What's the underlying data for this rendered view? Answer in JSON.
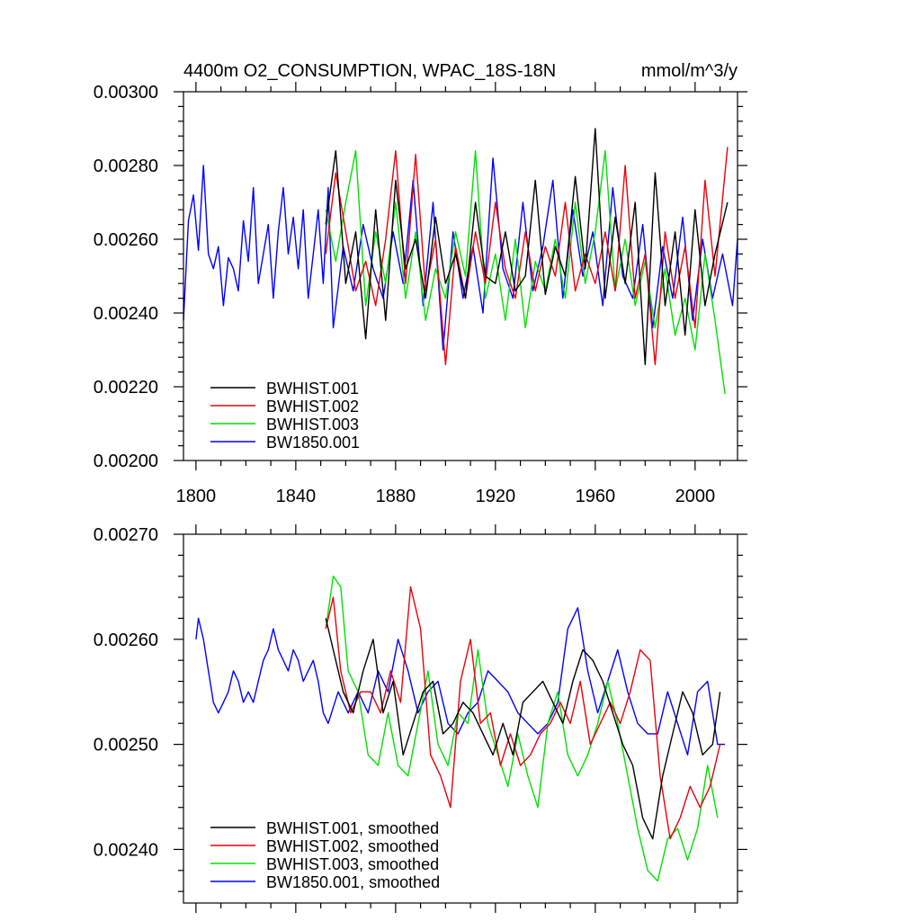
{
  "colors": {
    "BWHIST.001": "#000000",
    "BWHIST.002": "#e8000b",
    "BWHIST.003": "#00e000",
    "BW1850.001": "#0000ff"
  },
  "chart_data": [
    {
      "type": "line",
      "title": "4400m O2_CONSUMPTION, WPAC_18S-18N",
      "units": "mmol/m^3/y",
      "xlim": [
        1795,
        2017
      ],
      "ylim": [
        0.002,
        0.003
      ],
      "xticks": [
        1800,
        1840,
        1880,
        1920,
        1960,
        2000
      ],
      "xtick_labels": [
        "1800",
        "1840",
        "1880",
        "1920",
        "1960",
        "2000"
      ],
      "yticks": [
        0.002,
        0.0022,
        0.0024,
        0.0026,
        0.0028,
        0.003
      ],
      "ytick_labels": [
        "0.00200",
        "0.00220",
        "0.00240",
        "0.00260",
        "0.00280",
        "0.00300"
      ],
      "series": [
        {
          "name": "BWHIST.001",
          "label": "BWHIST.001",
          "x": [
            1852,
            1856,
            1860,
            1864,
            1868,
            1872,
            1876,
            1880,
            1884,
            1888,
            1892,
            1896,
            1900,
            1904,
            1908,
            1912,
            1916,
            1920,
            1924,
            1928,
            1932,
            1936,
            1940,
            1944,
            1948,
            1952,
            1956,
            1960,
            1964,
            1968,
            1972,
            1976,
            1980,
            1984,
            1988,
            1992,
            1996,
            2000,
            2004,
            2008,
            2013
          ],
          "values": [
            0.00264,
            0.00284,
            0.00248,
            0.00262,
            0.00233,
            0.00268,
            0.00238,
            0.00276,
            0.00252,
            0.0026,
            0.00244,
            0.00266,
            0.00248,
            0.00256,
            0.00244,
            0.0027,
            0.0025,
            0.00248,
            0.00262,
            0.00246,
            0.0025,
            0.00276,
            0.00245,
            0.00258,
            0.0025,
            0.00277,
            0.00252,
            0.0029,
            0.00244,
            0.00266,
            0.00248,
            0.0027,
            0.00226,
            0.00278,
            0.00242,
            0.00262,
            0.00234,
            0.00268,
            0.00242,
            0.00256,
            0.0027
          ]
        },
        {
          "name": "BWHIST.002",
          "label": "BWHIST.002",
          "x": [
            1852,
            1856,
            1860,
            1864,
            1868,
            1872,
            1876,
            1880,
            1884,
            1888,
            1892,
            1896,
            1900,
            1904,
            1908,
            1912,
            1916,
            1920,
            1924,
            1928,
            1932,
            1936,
            1940,
            1944,
            1948,
            1952,
            1956,
            1960,
            1964,
            1968,
            1972,
            1976,
            1980,
            1984,
            1988,
            1992,
            1996,
            2000,
            2004,
            2008,
            2013
          ],
          "values": [
            0.00256,
            0.00278,
            0.00262,
            0.00246,
            0.00254,
            0.00242,
            0.0026,
            0.00284,
            0.00248,
            0.00283,
            0.00246,
            0.0026,
            0.00226,
            0.00258,
            0.00244,
            0.00262,
            0.00248,
            0.0027,
            0.00252,
            0.00244,
            0.00262,
            0.00246,
            0.00258,
            0.0025,
            0.0027,
            0.00246,
            0.00256,
            0.00248,
            0.00262,
            0.00246,
            0.0028,
            0.00244,
            0.00256,
            0.00226,
            0.00262,
            0.00244,
            0.00258,
            0.00236,
            0.00276,
            0.0025,
            0.00285
          ]
        },
        {
          "name": "BWHIST.003",
          "label": "BWHIST.003",
          "x": [
            1852,
            1856,
            1860,
            1864,
            1868,
            1872,
            1876,
            1880,
            1884,
            1888,
            1892,
            1896,
            1900,
            1904,
            1908,
            1912,
            1916,
            1920,
            1924,
            1928,
            1932,
            1936,
            1940,
            1944,
            1948,
            1952,
            1956,
            1960,
            1964,
            1968,
            1972,
            1976,
            1980,
            1984,
            1988,
            1992,
            1996,
            2000,
            2004,
            2008,
            2012
          ],
          "values": [
            0.00268,
            0.00254,
            0.0027,
            0.00284,
            0.00242,
            0.00262,
            0.00248,
            0.0027,
            0.00244,
            0.00262,
            0.00238,
            0.00252,
            0.00244,
            0.00262,
            0.0025,
            0.00284,
            0.00244,
            0.00256,
            0.00238,
            0.0026,
            0.00236,
            0.00254,
            0.00246,
            0.0026,
            0.00244,
            0.0027,
            0.00248,
            0.00262,
            0.00284,
            0.00246,
            0.0026,
            0.00242,
            0.00254,
            0.00236,
            0.00252,
            0.00234,
            0.00244,
            0.0023,
            0.00256,
            0.00238,
            0.00218
          ]
        },
        {
          "name": "BW1850.001",
          "label": "BW1850.001",
          "x": [
            1795,
            1797,
            1799,
            1801,
            1803,
            1805,
            1807,
            1809,
            1811,
            1813,
            1815,
            1817,
            1819,
            1821,
            1823,
            1825,
            1827,
            1829,
            1831,
            1833,
            1835,
            1837,
            1839,
            1841,
            1843,
            1845,
            1847,
            1849,
            1851,
            1853,
            1855,
            1859,
            1863,
            1867,
            1871,
            1875,
            1879,
            1883,
            1887,
            1891,
            1895,
            1899,
            1903,
            1907,
            1911,
            1915,
            1919,
            1923,
            1927,
            1931,
            1935,
            1939,
            1943,
            1947,
            1951,
            1955,
            1959,
            1963,
            1967,
            1971,
            1975,
            1979,
            1983,
            1987,
            1991,
            1995,
            1999,
            2003,
            2007,
            2011,
            2015,
            2017
          ],
          "values": [
            0.00238,
            0.00265,
            0.00272,
            0.00257,
            0.0028,
            0.00256,
            0.00252,
            0.00258,
            0.00242,
            0.00255,
            0.00252,
            0.00246,
            0.00265,
            0.00254,
            0.00274,
            0.00248,
            0.00256,
            0.00264,
            0.00244,
            0.00262,
            0.00274,
            0.00256,
            0.00266,
            0.00252,
            0.00268,
            0.00244,
            0.00256,
            0.00268,
            0.00248,
            0.00274,
            0.00236,
            0.00258,
            0.00246,
            0.00264,
            0.00252,
            0.00244,
            0.00262,
            0.00248,
            0.00276,
            0.00242,
            0.0027,
            0.0023,
            0.00262,
            0.00244,
            0.00258,
            0.0024,
            0.00282,
            0.00252,
            0.00244,
            0.0027,
            0.00246,
            0.00258,
            0.00276,
            0.00244,
            0.00268,
            0.0025,
            0.00262,
            0.00242,
            0.00274,
            0.0025,
            0.00244,
            0.00264,
            0.00236,
            0.00258,
            0.00244,
            0.00266,
            0.00238,
            0.0026,
            0.00244,
            0.00256,
            0.00242,
            0.0026
          ]
        }
      ]
    },
    {
      "type": "line",
      "title": "",
      "xlim": [
        1795,
        2017
      ],
      "ylim": [
        0.002349,
        0.0027
      ],
      "xticks": [
        1800,
        1840,
        1880,
        1920,
        1960,
        2000
      ],
      "yticks": [
        0.0024,
        0.0025,
        0.0026,
        0.0027
      ],
      "ytick_labels": [
        "0.00240",
        "0.00250",
        "0.00260",
        "0.00270"
      ],
      "series": [
        {
          "name": "BWHIST.001",
          "label": "BWHIST.001, smoothed",
          "x": [
            1852,
            1855,
            1859,
            1863,
            1867,
            1871,
            1875,
            1879,
            1883,
            1887,
            1891,
            1895,
            1899,
            1903,
            1907,
            1911,
            1915,
            1919,
            1923,
            1927,
            1931,
            1935,
            1939,
            1943,
            1947,
            1951,
            1955,
            1959,
            1963,
            1967,
            1971,
            1975,
            1979,
            1983,
            1987,
            1991,
            1995,
            1999,
            2003,
            2007,
            2010
          ],
          "values": [
            0.00262,
            0.00259,
            0.00255,
            0.00253,
            0.00257,
            0.0026,
            0.00253,
            0.00256,
            0.00249,
            0.00252,
            0.00255,
            0.00256,
            0.00251,
            0.00252,
            0.00254,
            0.00253,
            0.00251,
            0.00249,
            0.00252,
            0.00249,
            0.00254,
            0.00255,
            0.00256,
            0.00254,
            0.00252,
            0.00256,
            0.00259,
            0.00258,
            0.00256,
            0.00253,
            0.0025,
            0.00248,
            0.00243,
            0.00241,
            0.00247,
            0.00251,
            0.00255,
            0.00253,
            0.00249,
            0.0025,
            0.00255
          ]
        },
        {
          "name": "BWHIST.002",
          "label": "BWHIST.002, smoothed",
          "x": [
            1852,
            1855,
            1858,
            1862,
            1866,
            1870,
            1874,
            1878,
            1882,
            1886,
            1890,
            1894,
            1898,
            1902,
            1906,
            1910,
            1914,
            1918,
            1922,
            1926,
            1930,
            1934,
            1938,
            1942,
            1946,
            1950,
            1954,
            1958,
            1962,
            1966,
            1970,
            1974,
            1978,
            1982,
            1986,
            1990,
            1994,
            1998,
            2002,
            2006,
            2010
          ],
          "values": [
            0.00261,
            0.00264,
            0.00257,
            0.00253,
            0.00255,
            0.00255,
            0.00253,
            0.00257,
            0.00254,
            0.00265,
            0.00261,
            0.00249,
            0.00247,
            0.00244,
            0.00256,
            0.0026,
            0.00252,
            0.00253,
            0.00248,
            0.00251,
            0.00248,
            0.00249,
            0.00251,
            0.00252,
            0.00254,
            0.00252,
            0.00256,
            0.0025,
            0.00252,
            0.00254,
            0.00252,
            0.00255,
            0.00259,
            0.00258,
            0.00247,
            0.00241,
            0.00243,
            0.00246,
            0.00244,
            0.00246,
            0.0025
          ]
        },
        {
          "name": "BWHIST.003",
          "label": "BWHIST.003, smoothed",
          "x": [
            1852,
            1855,
            1858,
            1861,
            1865,
            1869,
            1873,
            1877,
            1881,
            1885,
            1889,
            1893,
            1897,
            1901,
            1905,
            1909,
            1913,
            1917,
            1921,
            1925,
            1929,
            1933,
            1937,
            1941,
            1945,
            1949,
            1953,
            1957,
            1961,
            1965,
            1969,
            1973,
            1977,
            1981,
            1985,
            1989,
            1993,
            1997,
            2001,
            2005,
            2009
          ],
          "values": [
            0.00261,
            0.00266,
            0.00265,
            0.00257,
            0.00255,
            0.00249,
            0.00248,
            0.00253,
            0.00248,
            0.00247,
            0.00252,
            0.00257,
            0.0025,
            0.00248,
            0.00253,
            0.00252,
            0.00259,
            0.00252,
            0.00249,
            0.00246,
            0.00251,
            0.00247,
            0.00244,
            0.00252,
            0.00255,
            0.00249,
            0.00247,
            0.00249,
            0.00252,
            0.00256,
            0.00252,
            0.00247,
            0.00242,
            0.00238,
            0.00237,
            0.00241,
            0.00242,
            0.00239,
            0.00242,
            0.00248,
            0.00243
          ]
        },
        {
          "name": "BW1850.001",
          "label": "BW1850.001, smoothed",
          "x": [
            1800,
            1801,
            1803,
            1805,
            1807,
            1809,
            1811,
            1813,
            1815,
            1817,
            1819,
            1821,
            1823,
            1825,
            1827,
            1829,
            1831,
            1833,
            1835,
            1837,
            1839,
            1841,
            1843,
            1845,
            1847,
            1849,
            1851,
            1853,
            1857,
            1861,
            1865,
            1869,
            1873,
            1877,
            1881,
            1885,
            1889,
            1893,
            1897,
            1901,
            1905,
            1909,
            1913,
            1917,
            1921,
            1925,
            1929,
            1933,
            1937,
            1941,
            1945,
            1949,
            1953,
            1957,
            1961,
            1965,
            1969,
            1973,
            1977,
            1981,
            1985,
            1989,
            1993,
            1997,
            2001,
            2005,
            2009,
            2012
          ],
          "values": [
            0.0026,
            0.00262,
            0.0026,
            0.00257,
            0.00254,
            0.00253,
            0.00254,
            0.00255,
            0.00257,
            0.00256,
            0.00254,
            0.00255,
            0.00254,
            0.00256,
            0.00258,
            0.00259,
            0.00261,
            0.00259,
            0.00258,
            0.00257,
            0.00259,
            0.00258,
            0.00256,
            0.00257,
            0.00258,
            0.00256,
            0.00253,
            0.00252,
            0.00255,
            0.00253,
            0.00255,
            0.00253,
            0.00257,
            0.00255,
            0.0026,
            0.00257,
            0.00253,
            0.00255,
            0.00256,
            0.00252,
            0.00251,
            0.00253,
            0.00254,
            0.00257,
            0.00256,
            0.00255,
            0.00253,
            0.00252,
            0.00251,
            0.00252,
            0.00254,
            0.00261,
            0.00263,
            0.00257,
            0.00253,
            0.00256,
            0.00259,
            0.00255,
            0.00252,
            0.00251,
            0.00251,
            0.00255,
            0.00252,
            0.00249,
            0.00255,
            0.00256,
            0.0025,
            0.0025
          ]
        }
      ]
    }
  ]
}
